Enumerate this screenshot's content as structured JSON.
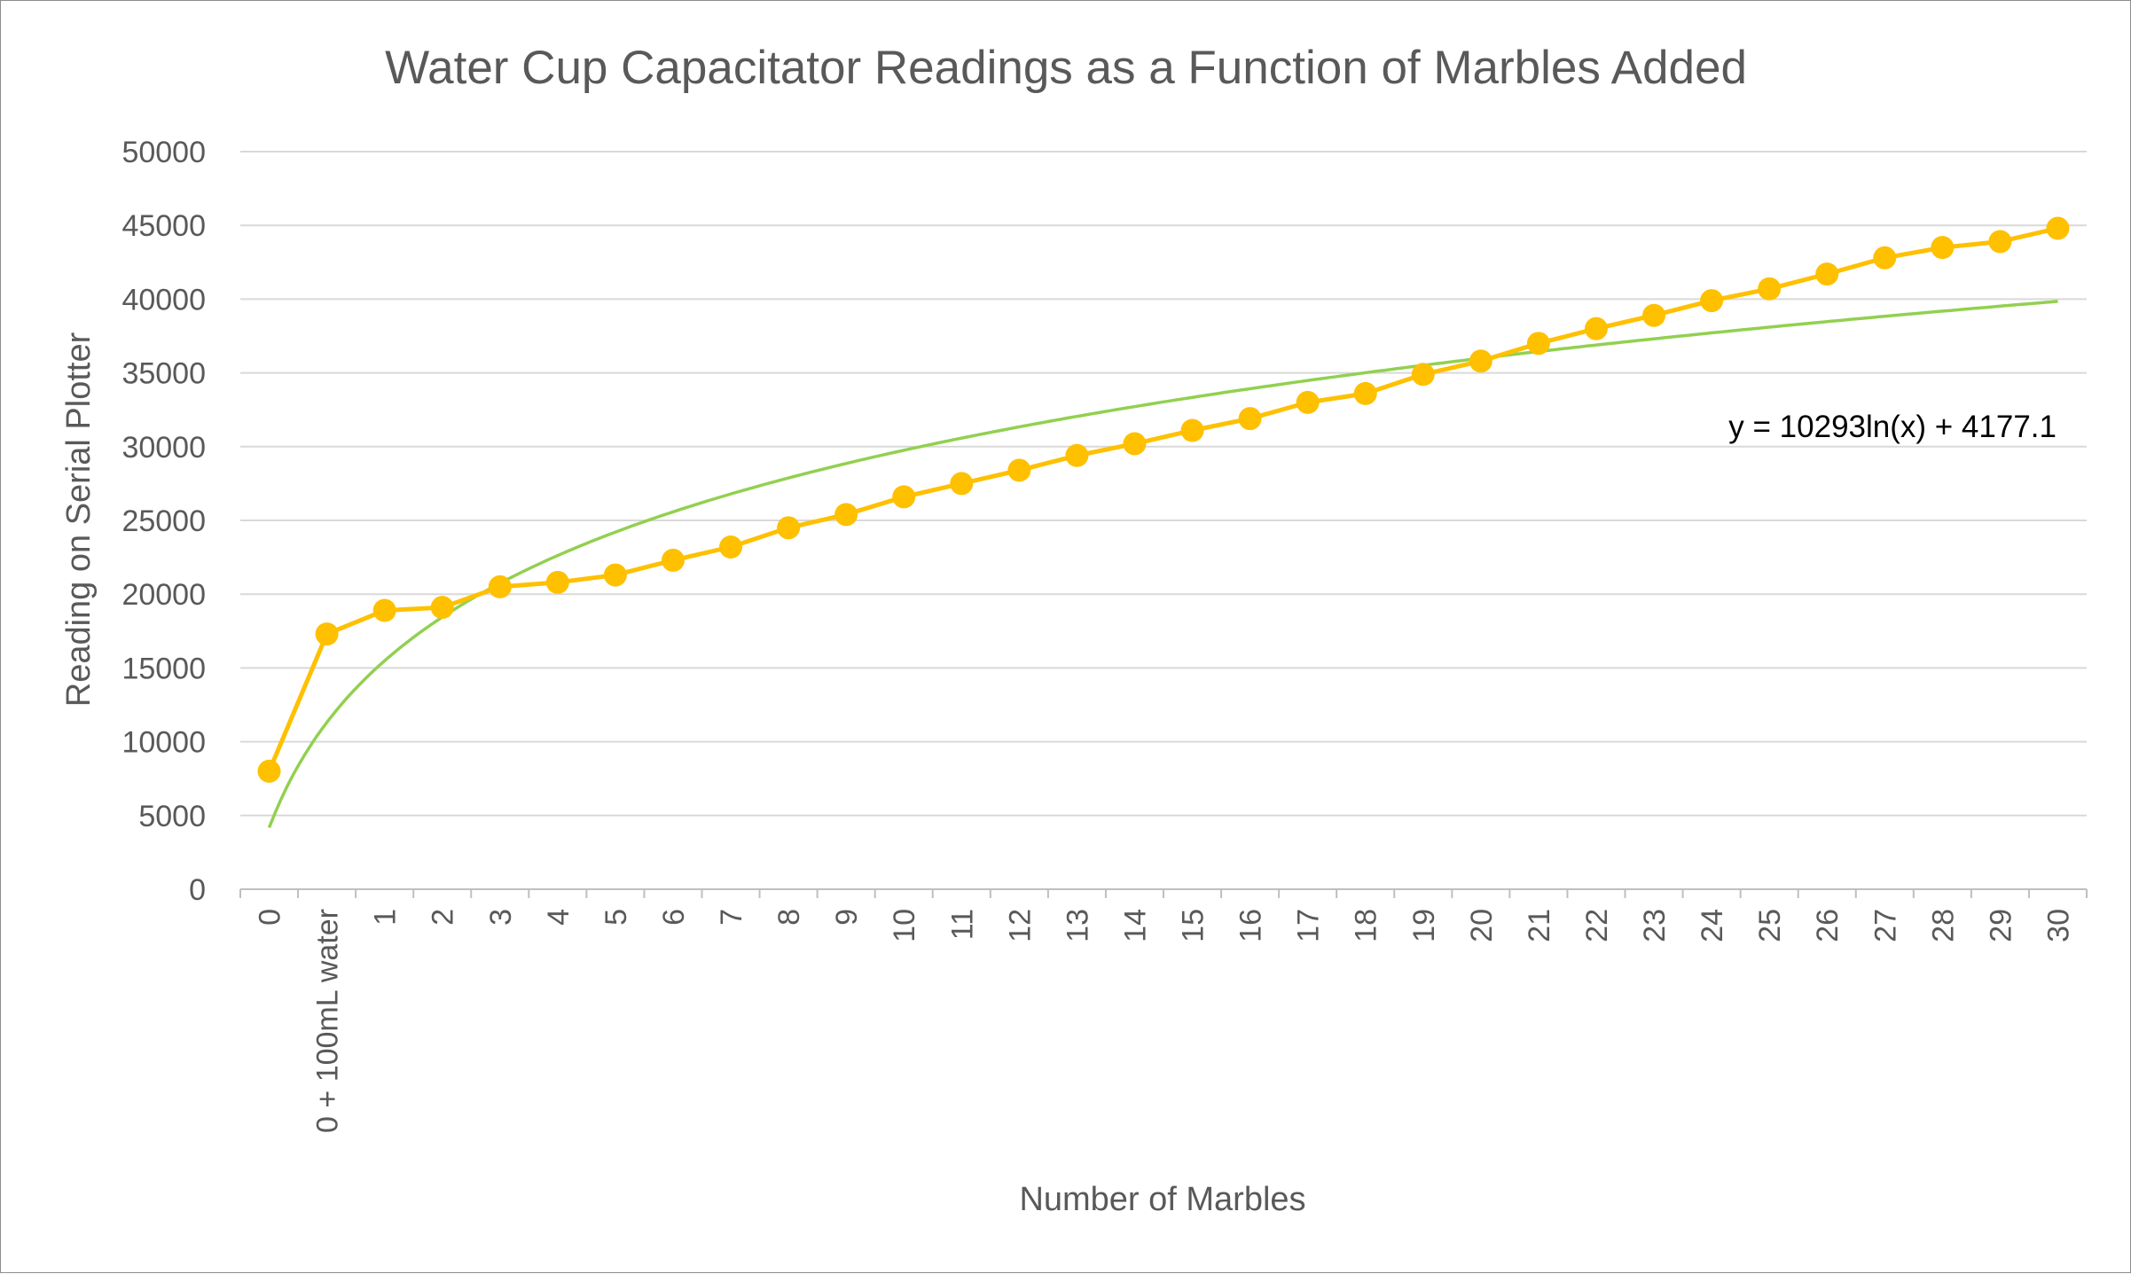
{
  "chart_data": {
    "type": "line",
    "title": "Water Cup Capacitator Readings as a Function of Marbles Added",
    "xlabel": "Number of Marbles",
    "ylabel": "Reading on Serial Plotter",
    "ylim": [
      0,
      50000
    ],
    "yticks": [
      0,
      5000,
      10000,
      15000,
      20000,
      25000,
      30000,
      35000,
      40000,
      45000,
      50000
    ],
    "grid": true,
    "categories": [
      "0",
      "0 + 100mL water",
      "1",
      "2",
      "3",
      "4",
      "5",
      "6",
      "7",
      "8",
      "9",
      "10",
      "11",
      "12",
      "13",
      "14",
      "15",
      "16",
      "17",
      "18",
      "19",
      "20",
      "21",
      "22",
      "23",
      "24",
      "25",
      "26",
      "27",
      "28",
      "29",
      "30"
    ],
    "series": [
      {
        "values": [
          8000,
          17300,
          18900,
          19100,
          20500,
          20800,
          21300,
          22300,
          23200,
          24500,
          25400,
          26600,
          27500,
          28400,
          29400,
          30200,
          31100,
          31900,
          33000,
          33600,
          34900,
          35800,
          37000,
          38000,
          38900,
          39900,
          40700,
          41700,
          42800,
          43500,
          43900,
          44800
        ],
        "color": "#FFC000",
        "marker": "circle"
      }
    ],
    "trendline": {
      "type": "logarithmic",
      "equation": "y = 10293ln(x) + 4177.1",
      "a": 10293,
      "b": 4177.1,
      "color": "#92D050"
    }
  }
}
